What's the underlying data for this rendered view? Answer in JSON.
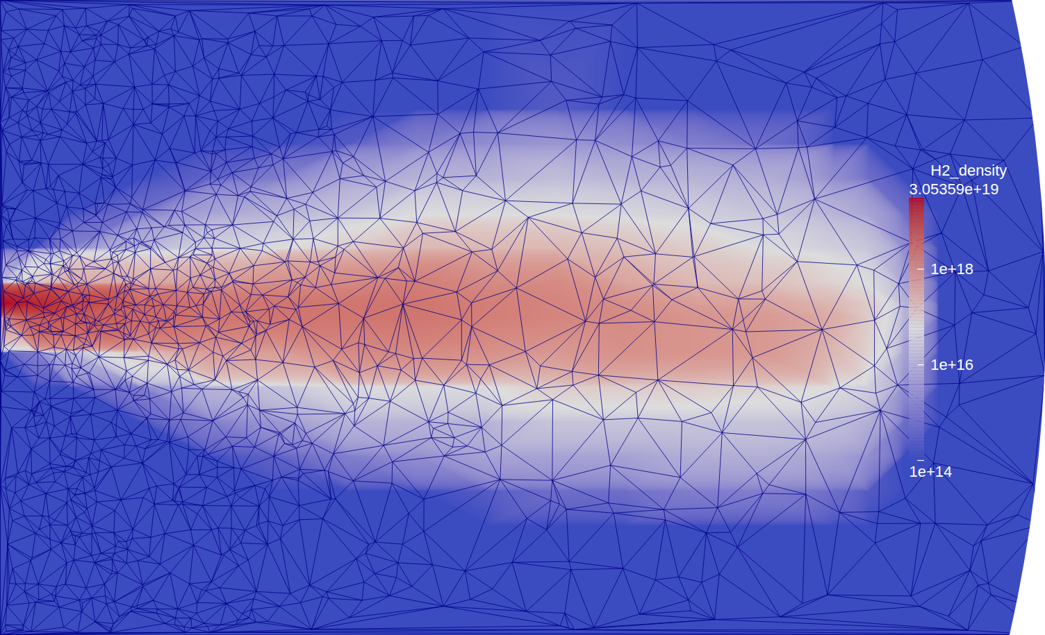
{
  "chart_data": {
    "type": "heatmap",
    "tick_labels": false,
    "log": true,
    "xlim": [
      0,
      15.04
    ],
    "ylim": [
      -4.58,
      4.57
    ],
    "x": [
      0,
      0.5,
      1,
      2,
      3,
      4,
      5,
      6,
      7,
      8,
      9,
      10,
      11,
      12,
      12.5,
      13,
      13.5,
      15.04
    ],
    "y": [
      4.6,
      3,
      2.5,
      2,
      1.5,
      1,
      0.5,
      0.2,
      0,
      -0.5,
      -1,
      -1.5,
      -2,
      -2.5,
      -3,
      -4.6
    ],
    "values": [
      [
        100000000000000.0,
        100000000000000.0,
        100000000000000.0,
        100000000000000.0,
        100000000000000.0,
        100000000000000.0,
        1e+16,
        3.05359e+19,
        5e+17,
        100000000000000.0,
        100000000000000.0,
        100000000000000.0,
        100000000000000.0,
        100000000000000.0,
        100000000000000.0,
        100000000000000.0
      ],
      [
        100000000000000.0,
        100000000000000.0,
        100000000000000.0,
        100000000000000.0,
        100000000000000.0,
        100000000000000.0,
        1e+17,
        2e+19,
        5e+18,
        1000000000000000.0,
        100000000000000.0,
        100000000000000.0,
        100000000000000.0,
        100000000000000.0,
        100000000000000.0,
        100000000000000.0
      ],
      [
        100000000000000.0,
        100000000000000.0,
        100000000000000.0,
        100000000000000.0,
        100000000000000.0,
        1000000000000000.0,
        3e+17,
        1e+19,
        5e+18,
        1e+16,
        100000000000000.0,
        100000000000000.0,
        100000000000000.0,
        100000000000000.0,
        100000000000000.0,
        100000000000000.0
      ],
      [
        100000000000000.0,
        100000000000000.0,
        100000000000000.0,
        100000000000000.0,
        500000000000000.0,
        1e+16,
        3e+17,
        3e+18,
        3e+18,
        1e+17,
        1000000000000000.0,
        100000000000000.0,
        100000000000000.0,
        100000000000000.0,
        100000000000000.0,
        100000000000000.0
      ],
      [
        100000000000000.0,
        100000000000000.0,
        100000000000000.0,
        300000000000000.0,
        5000000000000000.0,
        3e+16,
        5e+17,
        2e+18,
        2e+18,
        5e+17,
        1e+16,
        1000000000000000.0,
        100000000000000.0,
        100000000000000.0,
        100000000000000.0,
        100000000000000.0
      ],
      [
        100000000000000.0,
        100000000000000.0,
        100000000000000.0,
        1000000000000000.0,
        1e+16,
        5e+16,
        8e+17,
        2e+18,
        2e+18,
        5e+17,
        2e+16,
        3000000000000000.0,
        300000000000000.0,
        100000000000000.0,
        100000000000000.0,
        100000000000000.0
      ],
      [
        100000000000000.0,
        100000000000000.0,
        200000000000000.0,
        5000000000000000.0,
        2e+16,
        1e+17,
        1e+18,
        2e+18,
        2e+18,
        1e+18,
        5e+16,
        1e+16,
        1000000000000000.0,
        100000000000000.0,
        100000000000000.0,
        100000000000000.0
      ],
      [
        100000000000000.0,
        100000000000000.0,
        1000000000000000.0,
        1e+16,
        5e+16,
        2e+17,
        1.5e+18,
        2e+18,
        2e+18,
        1e+18,
        5e+16,
        1e+16,
        2000000000000000.0,
        100000000000000.0,
        100000000000000.0,
        100000000000000.0
      ],
      [
        100000000000000.0,
        100000000000000.0,
        2000000000000000.0,
        1e+16,
        5e+16,
        2e+17,
        1e+18,
        1.5e+18,
        1.5e+18,
        8e+17,
        5e+16,
        1e+16,
        5000000000000000.0,
        200000000000000.0,
        100000000000000.0,
        100000000000000.0
      ],
      [
        100000000000000.0,
        200000000000000.0,
        3000000000000000.0,
        1.5e+16,
        5e+16,
        2e+17,
        1e+18,
        1.2e+18,
        1.2e+18,
        6e+17,
        1e+17,
        2e+16,
        5000000000000000.0,
        500000000000000.0,
        100000000000000.0,
        100000000000000.0
      ],
      [
        100000000000000.0,
        100000000000000.0,
        2000000000000000.0,
        1e+16,
        4e+16,
        1.5e+17,
        4e+17,
        8e+17,
        1e+18,
        8e+17,
        1e+17,
        2e+16,
        5000000000000000.0,
        500000000000000.0,
        100000000000000.0,
        100000000000000.0
      ],
      [
        100000000000000.0,
        100000000000000.0,
        1000000000000000.0,
        1e+16,
        3e+16,
        1e+17,
        2e+17,
        5e+17,
        7e+17,
        7e+17,
        1e+17,
        2e+16,
        8000000000000000.0,
        1000000000000000.0,
        100000000000000.0,
        100000000000000.0
      ],
      [
        100000000000000.0,
        100000000000000.0,
        500000000000000.0,
        8000000000000000.0,
        2e+16,
        5e+16,
        1.5e+17,
        4e+17,
        6e+17,
        6e+17,
        8e+16,
        2e+16,
        8000000000000000.0,
        1000000000000000.0,
        100000000000000.0,
        100000000000000.0
      ],
      [
        100000000000000.0,
        100000000000000.0,
        100000000000000.0,
        2000000000000000.0,
        1e+16,
        3e+16,
        8e+16,
        2e+17,
        3e+17,
        2e+17,
        5e+16,
        1.5e+16,
        5000000000000000.0,
        500000000000000.0,
        100000000000000.0,
        100000000000000.0
      ],
      [
        100000000000000.0,
        100000000000000.0,
        100000000000000.0,
        500000000000000.0,
        5000000000000000.0,
        2e+16,
        5e+16,
        1e+17,
        1e+17,
        8e+16,
        3e+16,
        8000000000000000.0,
        2000000000000000.0,
        200000000000000.0,
        100000000000000.0,
        100000000000000.0
      ],
      [
        100000000000000.0,
        100000000000000.0,
        100000000000000.0,
        100000000000000.0,
        500000000000000.0,
        2000000000000000.0,
        5000000000000000.0,
        1e+16,
        1e+16,
        5000000000000000.0,
        2000000000000000.0,
        500000000000000.0,
        100000000000000.0,
        100000000000000.0,
        100000000000000.0,
        100000000000000.0
      ],
      [
        100000000000000.0,
        100000000000000.0,
        100000000000000.0,
        100000000000000.0,
        100000000000000.0,
        100000000000000.0,
        100000000000000.0,
        100000000000000.0,
        100000000000000.0,
        100000000000000.0,
        100000000000000.0,
        100000000000000.0,
        100000000000000.0,
        100000000000000.0,
        100000000000000.0,
        100000000000000.0
      ],
      [
        100000000000000.0,
        100000000000000.0,
        100000000000000.0,
        100000000000000.0,
        100000000000000.0,
        100000000000000.0,
        100000000000000.0,
        100000000000000.0,
        100000000000000.0,
        100000000000000.0,
        100000000000000.0,
        100000000000000.0,
        100000000000000.0,
        100000000000000.0,
        100000000000000.0,
        100000000000000.0
      ]
    ],
    "colorbar": {
      "label": "H2_density",
      "lim": [
        100000000000000.0,
        3.05359e+19
      ],
      "lim_labels": [
        "1e+14",
        "3.05359e+19"
      ],
      "ticks": [
        {
          "value": 1e+16,
          "label": "1e+16"
        },
        {
          "value": 1e+18,
          "label": "1e+18"
        }
      ]
    }
  }
}
